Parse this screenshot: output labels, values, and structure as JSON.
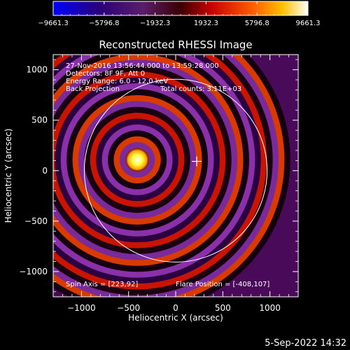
{
  "colorbar": {
    "tick_labels": [
      "-9661.3",
      "-5796.8",
      "-1932.3",
      "1932.3",
      "5796.8",
      "9661.3"
    ],
    "min": -9661.3,
    "max": 9661.3
  },
  "title": "Reconstructed RHESSI Image",
  "info_lines": [
    "27-Nov-2016 13:56:44.000 to 13:59:28.000",
    "Detectors: 8F 9F, Att 0",
    "Energy Range: 6.0 - 12.0 keV"
  ],
  "info_last": {
    "method": "Back Projection",
    "counts": "Total counts: 3.11E+03"
  },
  "footer_left": "Spin Axis = [223,92]",
  "footer_right": "Flare Position = [-408,107]",
  "timestamp": "5-Sep-2022 14:32",
  "colors": {
    "background": "#000000",
    "text": "#ffffff",
    "peak": "#ffff40"
  },
  "chart_data": {
    "type": "heatmap",
    "title": "Reconstructed RHESSI Image",
    "xlabel": "Heliocentric X (arcsec)",
    "ylabel": "Heliocentric Y (arcsec)",
    "xlim": [
      -1300,
      1300
    ],
    "ylim": [
      -1250,
      1150
    ],
    "x_ticks": [
      -1000,
      -500,
      0,
      500,
      1000
    ],
    "y_ticks": [
      -1000,
      -500,
      0,
      500,
      1000
    ],
    "x_tick_labels": [
      "−1000",
      "−500",
      "0",
      "500",
      "1000"
    ],
    "y_tick_labels": [
      "−1000",
      "−500",
      "0",
      "500",
      "1000"
    ],
    "colorscale": "rainbow-blue-purple-red-yellow-white",
    "value_range": [
      -9661.3,
      9661.3
    ],
    "source_peak": {
      "x": -408,
      "y": 107
    },
    "spin_axis": {
      "x": 223,
      "y": 92
    },
    "solar_limb": {
      "cx": 0,
      "cy": 0,
      "r": 970
    },
    "ring_spacing_arcsec": 125
  }
}
